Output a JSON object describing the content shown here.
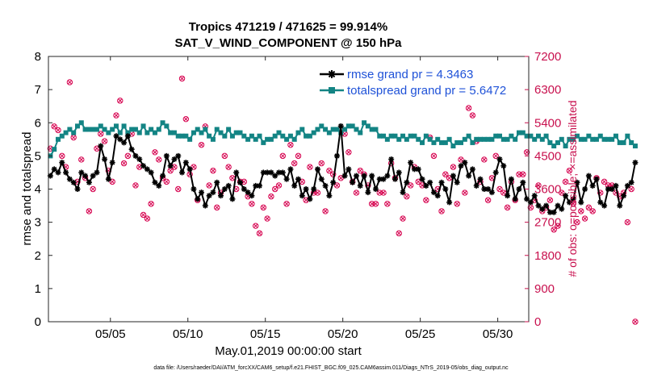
{
  "chart_data": {
    "type": "line",
    "title_line1": "Tropics 471219 / 471625 = 99.914%",
    "title_line2": "SAT_V_WIND_COMPONENT @ 150 hPa",
    "ylabel_left": "rmse and totalspread",
    "ylabel_right": "# of obs: o=possible; ×=assimilated",
    "xlabel": "May.01,2019 00:00:00 start",
    "footnote": "data file: /Users/raeder/DAI/ATM_forcXX/CAM6_setup/f.e21.FHIST_BGC.f09_025.CAM6assim.011/Diags_NTrS_2019-05/obs_diag_output.nc",
    "ylim_left": [
      0,
      8
    ],
    "ylim_right": [
      0,
      7200
    ],
    "xlim": [
      1,
      32
    ],
    "yticks_left": [
      "0",
      "1",
      "2",
      "3",
      "4",
      "5",
      "6",
      "7",
      "8"
    ],
    "yticks_right": [
      "0",
      "900",
      "1800",
      "2700",
      "3600",
      "4500",
      "5400",
      "6300",
      "7200"
    ],
    "xticks": [
      {
        "day": 5,
        "label": "05/05"
      },
      {
        "day": 10,
        "label": "05/10"
      },
      {
        "day": 15,
        "label": "05/15"
      },
      {
        "day": 20,
        "label": "05/20"
      },
      {
        "day": 25,
        "label": "05/25"
      },
      {
        "day": 30,
        "label": "05/30"
      }
    ],
    "legend": [
      {
        "label": "rmse grand pr = 4.3463",
        "color": "#000000",
        "marker": "star"
      },
      {
        "label": "totalspread grand pr = 5.6472",
        "color": "#138484",
        "marker": "square"
      }
    ],
    "x_start_day": 1.125,
    "x_step_days": 0.25,
    "series": [
      {
        "name": "rmse",
        "color": "#000000",
        "values": [
          4.4,
          4.6,
          4.5,
          4.8,
          4.5,
          4.3,
          4.2,
          4.0,
          4.5,
          4.4,
          4.2,
          4.4,
          4.5,
          5.3,
          4.9,
          4.3,
          4.8,
          5.6,
          5.5,
          5.4,
          5.6,
          5.2,
          5.0,
          4.9,
          4.7,
          4.6,
          4.5,
          4.2,
          4.1,
          4.4,
          5.0,
          4.7,
          4.9,
          5.0,
          4.5,
          4.8,
          4.6,
          4.0,
          3.7,
          3.9,
          3.5,
          3.8,
          3.9,
          4.2,
          3.8,
          4.0,
          4.1,
          3.7,
          4.5,
          4.2,
          4.0,
          3.9,
          3.8,
          4.1,
          4.1,
          4.5,
          4.5,
          4.5,
          4.4,
          4.5,
          4.5,
          4.3,
          4.6,
          4.1,
          4.3,
          3.8,
          4.0,
          3.7,
          4.0,
          4.6,
          4.3,
          4.1,
          3.8,
          4.2,
          5.0,
          5.9,
          4.4,
          4.6,
          4.2,
          4.4,
          4.1,
          4.4,
          3.9,
          4.4,
          4.0,
          4.3,
          4.3,
          4.4,
          4.9,
          4.3,
          4.5,
          3.9,
          4.2,
          4.8,
          4.6,
          4.6,
          4.3,
          4.1,
          4.2,
          3.9,
          3.8,
          4.2,
          4.0,
          3.6,
          4.4,
          4.2,
          4.7,
          4.8,
          4.4,
          4.6,
          4.1,
          4.3,
          4.0,
          4.0,
          3.9,
          4.5,
          4.9,
          4.7,
          3.8,
          4.3,
          3.7,
          4.0,
          4.2,
          3.7,
          3.6,
          3.8,
          3.5,
          3.4,
          3.5,
          3.3,
          3.3,
          3.5,
          3.4,
          3.8,
          3.6,
          3.7,
          4.2,
          3.6,
          4.0,
          4.4,
          4.1,
          4.3,
          3.6,
          3.5,
          4.0,
          4.0,
          4.1,
          3.5,
          3.8,
          4.1,
          4.2,
          4.8
        ],
        "marker": "star"
      },
      {
        "name": "totalspread",
        "color": "#138484",
        "values": [
          5.0,
          5.2,
          5.5,
          5.6,
          5.7,
          5.8,
          5.7,
          5.9,
          6.0,
          5.8,
          5.8,
          5.8,
          5.8,
          5.9,
          5.8,
          5.7,
          5.8,
          5.9,
          5.7,
          5.9,
          5.7,
          5.8,
          5.8,
          5.7,
          5.9,
          5.7,
          5.8,
          5.7,
          5.8,
          6.0,
          5.9,
          5.7,
          5.7,
          5.6,
          5.6,
          5.6,
          5.5,
          5.7,
          5.8,
          5.7,
          5.8,
          5.6,
          5.5,
          5.8,
          5.7,
          5.6,
          5.8,
          5.6,
          5.7,
          5.7,
          5.6,
          5.5,
          5.6,
          5.5,
          5.6,
          5.4,
          5.5,
          5.5,
          5.6,
          5.7,
          5.6,
          5.5,
          5.6,
          5.5,
          5.7,
          5.8,
          5.6,
          5.6,
          5.7,
          5.8,
          5.9,
          5.8,
          5.7,
          5.8,
          5.8,
          5.7,
          5.8,
          5.9,
          5.9,
          5.8,
          5.7,
          6.0,
          5.9,
          5.8,
          5.8,
          5.6,
          5.6,
          5.5,
          5.6,
          5.6,
          5.5,
          5.6,
          5.5,
          5.6,
          5.6,
          5.5,
          5.4,
          5.6,
          5.5,
          5.4,
          5.5,
          5.4,
          5.4,
          5.5,
          5.3,
          5.4,
          5.4,
          5.5,
          5.6,
          5.4,
          5.5,
          5.5,
          5.5,
          5.5,
          5.5,
          5.6,
          5.6,
          5.5,
          5.5,
          5.6,
          5.5,
          5.7,
          5.7,
          5.6,
          5.6,
          5.5,
          5.6,
          5.5,
          5.6,
          5.4,
          5.3,
          5.4,
          5.5,
          5.3,
          5.5,
          5.5,
          5.6,
          5.5,
          5.5,
          5.6,
          5.5,
          5.5,
          5.6,
          5.5,
          5.5,
          5.5,
          5.6,
          5.4,
          5.4,
          5.6,
          5.4,
          5.3
        ],
        "marker": "square"
      },
      {
        "name": "obs_count",
        "color": "#d6004e",
        "values": [
          4700,
          5300,
          5200,
          4500,
          4200,
          6500,
          5000,
          3800,
          4400,
          3900,
          3000,
          3600,
          4700,
          5100,
          4900,
          4100,
          3800,
          5600,
          6000,
          4300,
          4500,
          5100,
          3700,
          4200,
          2900,
          2800,
          3200,
          4600,
          4400,
          3900,
          3800,
          4100,
          4200,
          3600,
          6600,
          5500,
          4000,
          4200,
          3300,
          4800,
          5300,
          3700,
          4100,
          3100,
          3500,
          4500,
          4200,
          3900,
          3600,
          3800,
          3800,
          3400,
          3200,
          2600,
          2400,
          3100,
          2800,
          3400,
          3600,
          3700,
          4500,
          3200,
          4800,
          4300,
          4500,
          3800,
          3300,
          4200,
          3500,
          3500,
          4300,
          3000,
          4100,
          4000,
          3700,
          3900,
          5100,
          4600,
          3800,
          3500,
          4100,
          4000,
          3700,
          3200,
          3200,
          3500,
          3500,
          3200,
          4300,
          3900,
          2400,
          2800,
          3400,
          3700,
          4200,
          3800,
          3700,
          3300,
          5000,
          4500,
          3600,
          3000,
          4000,
          3900,
          4200,
          3200,
          4400,
          3500,
          5800,
          5600,
          4900,
          3800,
          4400,
          3300,
          3900,
          4500,
          3600,
          3500,
          3100,
          3800,
          3300,
          4000,
          4000,
          4600,
          3100,
          3300,
          3700,
          3000,
          3100,
          3300,
          2500,
          2600,
          3500,
          3800,
          4100,
          3200,
          2700,
          3000,
          2800,
          3100,
          3000,
          3900,
          3500,
          3800,
          3700,
          3700,
          3500,
          3400,
          3500,
          2700,
          3600,
          0
        ]
      }
    ]
  }
}
